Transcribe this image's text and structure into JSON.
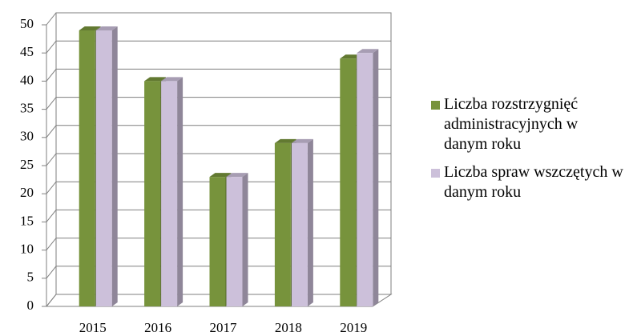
{
  "chart_data": {
    "type": "bar3d",
    "categories": [
      "2015",
      "2016",
      "2017",
      "2018",
      "2019"
    ],
    "series": [
      {
        "name": "Liczba rozstrzygnięć administracyjnych w danym roku",
        "color": "#77933c",
        "values": [
          49,
          40,
          23,
          29,
          44
        ]
      },
      {
        "name": "Liczba spraw wszczętych w danym roku",
        "color": "#ccc0da",
        "values": [
          49,
          40,
          23,
          29,
          45
        ]
      }
    ],
    "ylim": [
      0,
      50
    ],
    "yticks": [
      0,
      5,
      10,
      15,
      20,
      25,
      30,
      35,
      40,
      45,
      50
    ],
    "grid": true,
    "legend": "right"
  }
}
